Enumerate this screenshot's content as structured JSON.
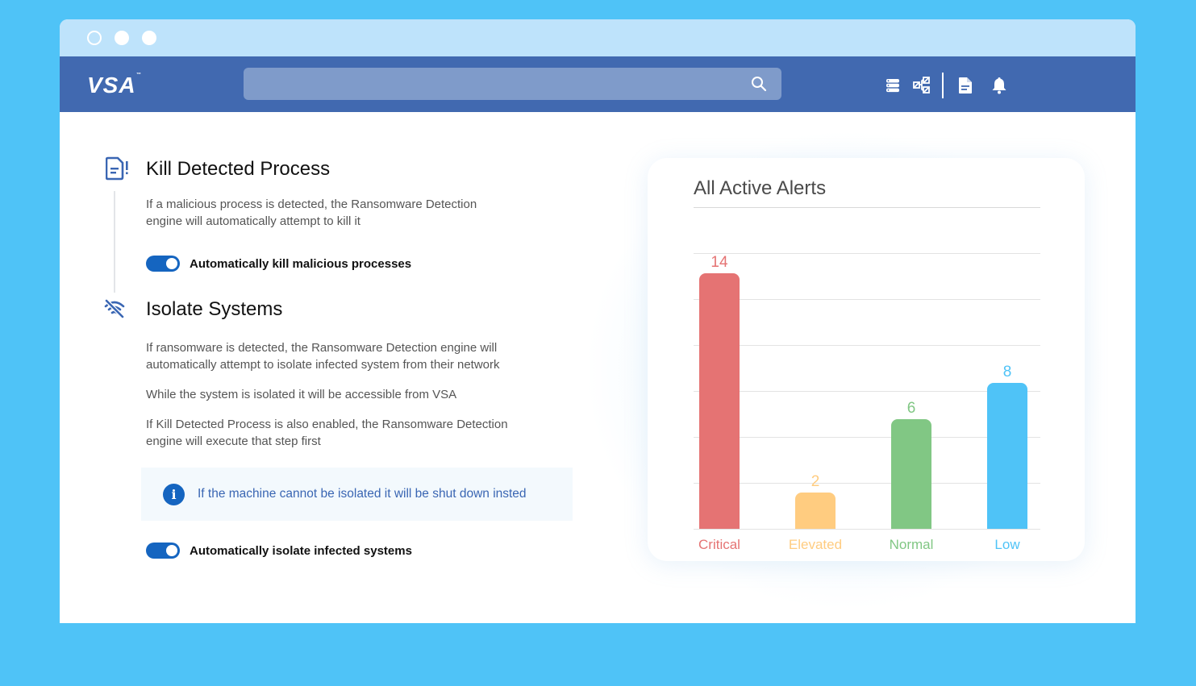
{
  "window": {
    "controls": [
      "close",
      "minimize",
      "maximize"
    ]
  },
  "navbar": {
    "logo": "VSA",
    "logo_tm": "™",
    "search": {
      "placeholder": "",
      "value": "",
      "icon": "search-icon"
    },
    "icons": [
      "server-stack-icon",
      "network-nodes-icon",
      "document-icon",
      "bell-icon"
    ]
  },
  "sections": {
    "kill": {
      "icon": "document-alert-icon",
      "title": "Kill Detected Process",
      "description": "If a malicious process is detected, the Ransomware Detection engine will automatically attempt to kill it",
      "toggle_label": "Automatically kill malicious processes",
      "toggle_on": true
    },
    "isolate": {
      "icon": "wifi-off-icon",
      "title": "Isolate Systems",
      "paragraphs": [
        "If ransomware is detected, the Ransomware Detection engine will automatically attempt to isolate infected system from their network",
        "While the system is isolated it will be accessible from VSA",
        "If Kill Detected Process is also enabled, the Ransomware Detection engine will execute that step first"
      ],
      "info": {
        "icon": "info-icon",
        "text": "If the machine cannot be isolated it will be shut down insted"
      },
      "toggle_label": "Automatically isolate infected systems",
      "toggle_on": true
    }
  },
  "card": {
    "title": "All Active Alerts"
  },
  "chart_data": {
    "type": "bar",
    "title": "All Active Alerts",
    "categories": [
      "Critical",
      "Elevated",
      "Normal",
      "Low"
    ],
    "values": [
      14,
      2,
      6,
      8
    ],
    "colors": [
      "#e57373",
      "#ffcc80",
      "#81c784",
      "#4fc3f7"
    ],
    "xlabel": "",
    "ylabel": "",
    "ylim": [
      0,
      15
    ],
    "grid": true,
    "data_labels": true
  },
  "colors": {
    "background": "#4fc3f7",
    "navbar": "#4169b0",
    "titlebar": "#bee3fb",
    "accent": "#1565c0",
    "info_text": "#3a66b3"
  }
}
